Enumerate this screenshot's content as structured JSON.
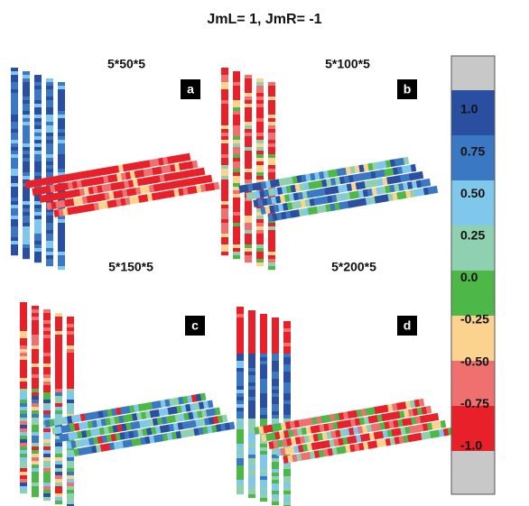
{
  "title": "JmL= 1, JmR= -1",
  "panels": [
    {
      "size": "5*50*5",
      "letter": "a"
    },
    {
      "size": "5*100*5",
      "letter": "b"
    },
    {
      "size": "5*150*5",
      "letter": "c"
    },
    {
      "size": "5*200*5",
      "letter": "d"
    }
  ],
  "colorbar": {
    "labels": [
      "1.0",
      "0.75",
      "0.50",
      "0.25",
      "0.0",
      "-0.25",
      "-0.50",
      "-0.75",
      "-1.0"
    ]
  }
}
